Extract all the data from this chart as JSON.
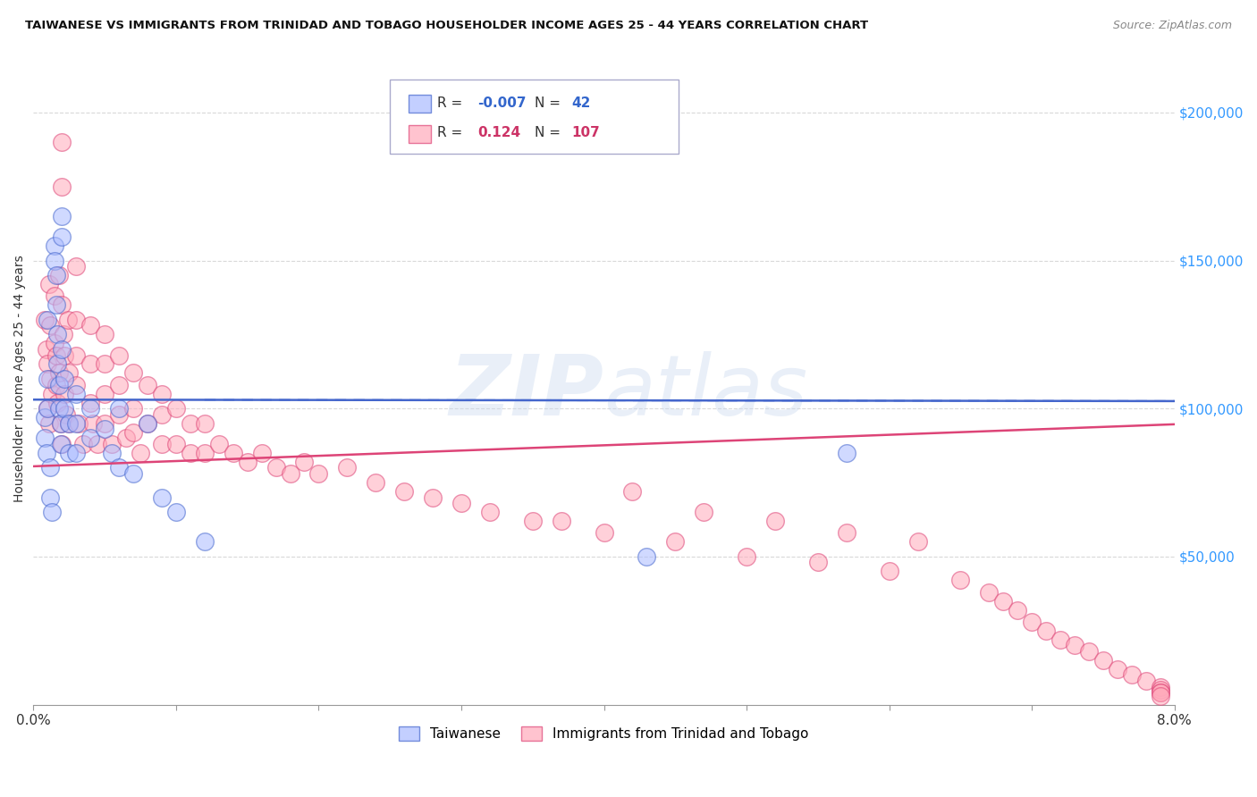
{
  "title": "TAIWANESE VS IMMIGRANTS FROM TRINIDAD AND TOBAGO HOUSEHOLDER INCOME AGES 25 - 44 YEARS CORRELATION CHART",
  "source": "Source: ZipAtlas.com",
  "ylabel": "Householder Income Ages 25 - 44 years",
  "xlim": [
    0.0,
    0.08
  ],
  "ylim": [
    0,
    220000
  ],
  "background_color": "#ffffff",
  "grid_color": "#d0d0d0",
  "watermark": "ZIPatlas",
  "legend_R1": "-0.007",
  "legend_N1": "42",
  "legend_R2": "0.124",
  "legend_N2": "107",
  "blue_fill": "#aabbff",
  "blue_edge": "#4466cc",
  "pink_fill": "#ffaabb",
  "pink_edge": "#dd4477",
  "line_blue_color": "#4466cc",
  "line_pink_color": "#dd4477",
  "blue_line_y0": 103000,
  "blue_line_y1": 102500,
  "pink_line_y0": 88000,
  "pink_line_y1": 105000,
  "taiwanese_x": [
    0.0008,
    0.0008,
    0.0009,
    0.001,
    0.001,
    0.001,
    0.0012,
    0.0012,
    0.0013,
    0.0015,
    0.0015,
    0.0016,
    0.0016,
    0.0017,
    0.0017,
    0.0018,
    0.0018,
    0.0019,
    0.0019,
    0.002,
    0.002,
    0.002,
    0.0022,
    0.0022,
    0.0025,
    0.0025,
    0.003,
    0.003,
    0.003,
    0.004,
    0.004,
    0.005,
    0.0055,
    0.006,
    0.006,
    0.007,
    0.008,
    0.009,
    0.01,
    0.012,
    0.043,
    0.057
  ],
  "taiwanese_y": [
    97000,
    90000,
    85000,
    130000,
    110000,
    100000,
    80000,
    70000,
    65000,
    155000,
    150000,
    145000,
    135000,
    125000,
    115000,
    108000,
    100000,
    95000,
    88000,
    165000,
    158000,
    120000,
    110000,
    100000,
    95000,
    85000,
    105000,
    95000,
    85000,
    100000,
    90000,
    93000,
    85000,
    100000,
    80000,
    78000,
    95000,
    70000,
    65000,
    55000,
    50000,
    85000
  ],
  "trinidad_x": [
    0.0008,
    0.0009,
    0.001,
    0.001,
    0.0011,
    0.0011,
    0.0012,
    0.0012,
    0.0013,
    0.0015,
    0.0015,
    0.0016,
    0.0016,
    0.0017,
    0.0018,
    0.0018,
    0.0019,
    0.002,
    0.002,
    0.002,
    0.002,
    0.0021,
    0.0022,
    0.0022,
    0.0023,
    0.0024,
    0.0025,
    0.0025,
    0.003,
    0.003,
    0.003,
    0.003,
    0.0032,
    0.0035,
    0.004,
    0.004,
    0.004,
    0.0042,
    0.0045,
    0.005,
    0.005,
    0.005,
    0.005,
    0.0055,
    0.006,
    0.006,
    0.006,
    0.0065,
    0.007,
    0.007,
    0.007,
    0.0075,
    0.008,
    0.008,
    0.009,
    0.009,
    0.009,
    0.01,
    0.01,
    0.011,
    0.011,
    0.012,
    0.012,
    0.013,
    0.014,
    0.015,
    0.016,
    0.017,
    0.018,
    0.019,
    0.02,
    0.022,
    0.024,
    0.026,
    0.028,
    0.03,
    0.032,
    0.035,
    0.037,
    0.04,
    0.042,
    0.045,
    0.047,
    0.05,
    0.052,
    0.055,
    0.057,
    0.06,
    0.062,
    0.065,
    0.067,
    0.068,
    0.069,
    0.07,
    0.071,
    0.072,
    0.073,
    0.074,
    0.075,
    0.076,
    0.077,
    0.078,
    0.079,
    0.079,
    0.079,
    0.079,
    0.079
  ],
  "trinidad_y": [
    130000,
    120000,
    115000,
    100000,
    142000,
    95000,
    128000,
    110000,
    105000,
    138000,
    122000,
    118000,
    108000,
    102000,
    145000,
    112000,
    95000,
    190000,
    175000,
    135000,
    88000,
    125000,
    118000,
    105000,
    98000,
    130000,
    112000,
    95000,
    148000,
    130000,
    118000,
    108000,
    95000,
    88000,
    128000,
    115000,
    102000,
    95000,
    88000,
    125000,
    115000,
    105000,
    95000,
    88000,
    118000,
    108000,
    98000,
    90000,
    112000,
    100000,
    92000,
    85000,
    108000,
    95000,
    105000,
    98000,
    88000,
    100000,
    88000,
    95000,
    85000,
    95000,
    85000,
    88000,
    85000,
    82000,
    85000,
    80000,
    78000,
    82000,
    78000,
    80000,
    75000,
    72000,
    70000,
    68000,
    65000,
    62000,
    62000,
    58000,
    72000,
    55000,
    65000,
    50000,
    62000,
    48000,
    58000,
    45000,
    55000,
    42000,
    38000,
    35000,
    32000,
    28000,
    25000,
    22000,
    20000,
    18000,
    15000,
    12000,
    10000,
    8000,
    6000,
    5000,
    4000,
    4000,
    3000
  ]
}
